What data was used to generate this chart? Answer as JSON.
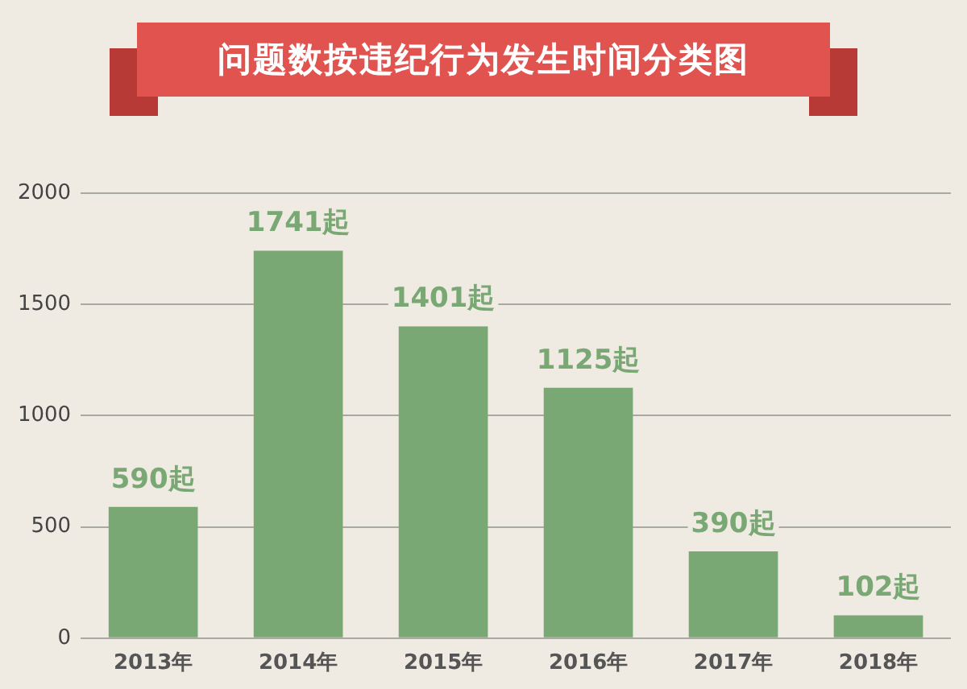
{
  "chart_data": {
    "type": "bar",
    "title": "问题数按违纪行为发生时间分类图",
    "categories": [
      "2013年",
      "2014年",
      "2015年",
      "2016年",
      "2017年",
      "2018年"
    ],
    "values": [
      590,
      1741,
      1401,
      1125,
      390,
      102
    ],
    "value_labels": [
      "590起",
      "1741起",
      "1401起",
      "1125起",
      "390起",
      "102起"
    ],
    "color": "#7aa874",
    "ylim": [
      0,
      2000
    ],
    "yticks": [
      0,
      500,
      1000,
      1500,
      2000
    ],
    "grid": "y",
    "legend": false
  }
}
